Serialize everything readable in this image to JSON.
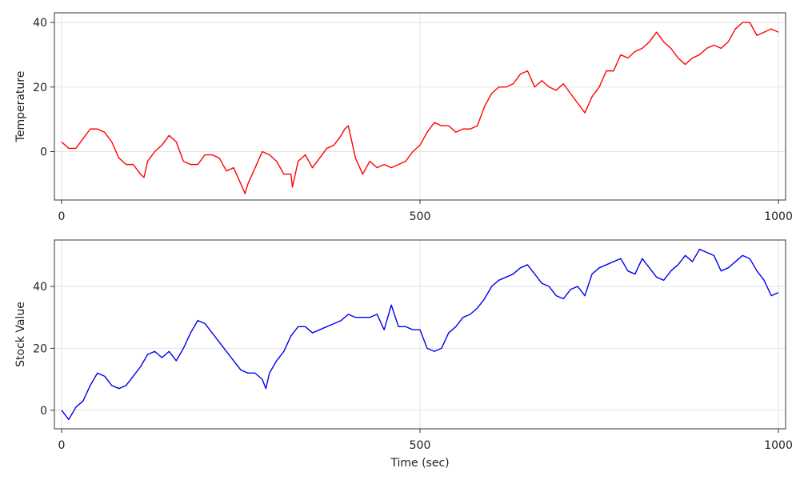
{
  "chart_data": [
    {
      "type": "line",
      "title": "",
      "xlabel": "",
      "ylabel": "Temperature",
      "xlim": [
        -10,
        1010
      ],
      "ylim": [
        -15,
        43
      ],
      "xticks": [
        0,
        500,
        1000
      ],
      "xtick_labels": [
        "0",
        "500",
        "1000"
      ],
      "yticks": [
        0,
        20,
        40
      ],
      "ytick_labels": [
        "0",
        "20",
        "40"
      ],
      "grid": true,
      "series": [
        {
          "color": "#ff0000",
          "x": [
            0,
            10,
            20,
            30,
            40,
            50,
            60,
            70,
            80,
            90,
            100,
            110,
            115,
            120,
            130,
            140,
            150,
            160,
            170,
            180,
            190,
            200,
            210,
            220,
            230,
            240,
            250,
            256,
            260,
            270,
            280,
            290,
            300,
            310,
            320,
            322,
            330,
            340,
            350,
            360,
            370,
            380,
            390,
            395,
            400,
            410,
            420,
            430,
            440,
            450,
            460,
            470,
            480,
            490,
            500,
            510,
            520,
            530,
            540,
            550,
            560,
            570,
            580,
            590,
            600,
            610,
            620,
            630,
            640,
            650,
            660,
            670,
            680,
            690,
            700,
            710,
            720,
            730,
            740,
            750,
            760,
            770,
            780,
            790,
            800,
            810,
            820,
            830,
            840,
            850,
            860,
            870,
            880,
            890,
            900,
            910,
            920,
            930,
            940,
            950,
            960,
            970,
            980,
            990,
            1000
          ],
          "y": [
            3,
            1,
            1,
            4,
            7,
            7,
            6,
            3,
            -2,
            -4,
            -4,
            -7,
            -8,
            -3,
            0,
            2,
            5,
            3,
            -3,
            -4,
            -4,
            -1,
            -1,
            -2,
            -6,
            -5,
            -10,
            -13,
            -10,
            -5,
            0,
            -1,
            -3,
            -7,
            -7,
            -11,
            -3,
            -1,
            -5,
            -2,
            1,
            2,
            5,
            7,
            8,
            -2,
            -7,
            -3,
            -5,
            -4,
            -5,
            -4,
            -3,
            0,
            2,
            6,
            9,
            8,
            8,
            6,
            7,
            7,
            8,
            14,
            18,
            20,
            20,
            21,
            24,
            25,
            20,
            22,
            20,
            19,
            21,
            18,
            15,
            12,
            17,
            20,
            25,
            25,
            30,
            29,
            31,
            32,
            34,
            37,
            34,
            32,
            29,
            27,
            29,
            30,
            32,
            33,
            32,
            34,
            38,
            40,
            40,
            36,
            37,
            38,
            37
          ]
        }
      ]
    },
    {
      "type": "line",
      "title": "",
      "xlabel": "Time (sec)",
      "ylabel": "Stock Value",
      "xlim": [
        -10,
        1010
      ],
      "ylim": [
        -6,
        55
      ],
      "xticks": [
        0,
        500,
        1000
      ],
      "xtick_labels": [
        "0",
        "500",
        "1000"
      ],
      "yticks": [
        0,
        20,
        40
      ],
      "ytick_labels": [
        "0",
        "20",
        "40"
      ],
      "grid": true,
      "series": [
        {
          "color": "#0000ee",
          "x": [
            0,
            10,
            20,
            30,
            40,
            50,
            60,
            70,
            80,
            90,
            100,
            110,
            120,
            130,
            140,
            150,
            160,
            170,
            180,
            190,
            200,
            210,
            220,
            230,
            240,
            250,
            260,
            270,
            280,
            285,
            290,
            300,
            310,
            320,
            330,
            340,
            350,
            360,
            370,
            380,
            390,
            400,
            410,
            420,
            430,
            440,
            450,
            460,
            470,
            480,
            490,
            500,
            510,
            520,
            530,
            540,
            550,
            560,
            570,
            580,
            590,
            600,
            610,
            620,
            630,
            640,
            650,
            660,
            670,
            680,
            690,
            700,
            710,
            720,
            730,
            740,
            750,
            760,
            770,
            780,
            790,
            800,
            810,
            820,
            830,
            840,
            850,
            860,
            870,
            880,
            890,
            900,
            910,
            920,
            930,
            940,
            950,
            960,
            970,
            980,
            990,
            1000
          ],
          "y": [
            0,
            -3,
            1,
            3,
            8,
            12,
            11,
            8,
            7,
            8,
            11,
            14,
            18,
            19,
            17,
            19,
            16,
            20,
            25,
            29,
            28,
            25,
            22,
            19,
            16,
            13,
            12,
            12,
            10,
            7,
            12,
            16,
            19,
            24,
            27,
            27,
            25,
            26,
            27,
            28,
            29,
            31,
            30,
            30,
            30,
            31,
            26,
            34,
            27,
            27,
            26,
            26,
            20,
            19,
            20,
            25,
            27,
            30,
            31,
            33,
            36,
            40,
            42,
            43,
            44,
            46,
            47,
            44,
            41,
            40,
            37,
            36,
            39,
            40,
            37,
            44,
            46,
            47,
            48,
            49,
            45,
            44,
            49,
            46,
            43,
            42,
            45,
            47,
            50,
            48,
            52,
            51,
            50,
            45,
            46,
            48,
            50,
            49,
            45,
            42,
            37,
            38
          ]
        }
      ]
    }
  ]
}
